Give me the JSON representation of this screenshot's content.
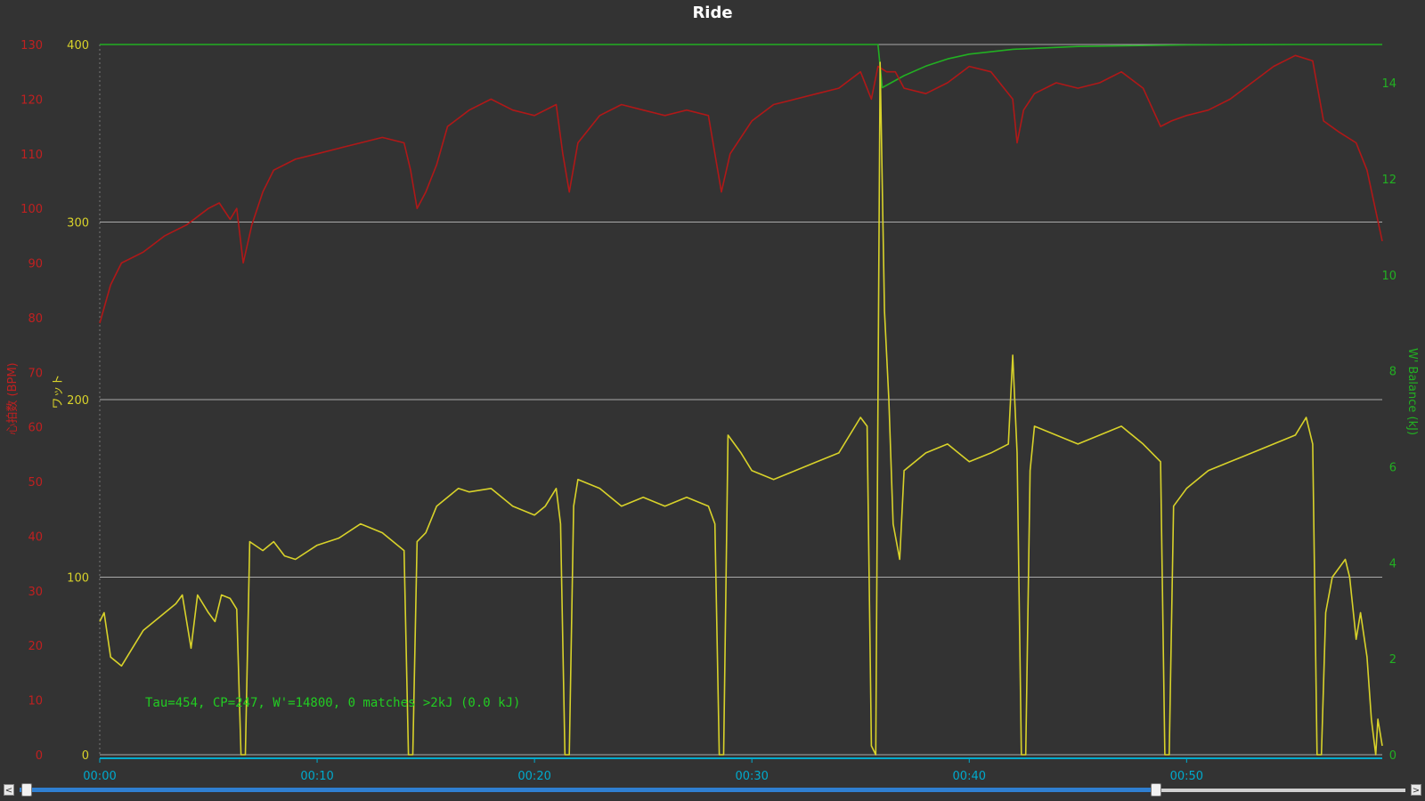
{
  "window": {
    "title": "Ride"
  },
  "annotation": "Tau=454, CP=247, W'=14800, 0 matches >2kJ (0.0 kJ)",
  "colors": {
    "background": "#333333",
    "power": "#d8d22a",
    "heart_rate": "#b01818",
    "w_balance": "#22b022",
    "grid": "#aaaaaa",
    "xaxis": "#00aacc"
  },
  "scrollbar": {
    "left_arrow": "<",
    "right_arrow": ">",
    "range_start_fraction": 0.0,
    "range_end_fraction": 0.82
  },
  "chart_data": {
    "type": "line",
    "title": "Ride",
    "x_unit": "time (hh:mm)",
    "xlim": [
      0,
      59
    ],
    "x_ticks": [
      "00:00",
      "00:10",
      "00:20",
      "00:30",
      "00:40",
      "00:50"
    ],
    "grid": true,
    "axes": {
      "left_heart_rate": {
        "label": "心拍数 (BPM)",
        "ylim": [
          0,
          130
        ],
        "ticks": [
          0,
          10,
          20,
          30,
          40,
          50,
          60,
          70,
          80,
          90,
          100,
          110,
          120,
          130
        ]
      },
      "left_power": {
        "label": "ワット",
        "ylim": [
          0,
          400
        ],
        "ticks": [
          0,
          100,
          200,
          300,
          400
        ]
      },
      "right_w_balance": {
        "label": "W' Balance (kJ)",
        "ylim": [
          0,
          14.8
        ],
        "ticks": [
          0,
          2,
          4,
          6,
          8,
          10,
          12,
          14
        ]
      }
    },
    "series": [
      {
        "axis": "left_power",
        "points": [
          [
            0,
            75
          ],
          [
            0.2,
            80
          ],
          [
            0.5,
            55
          ],
          [
            1,
            50
          ],
          [
            1.5,
            60
          ],
          [
            2,
            70
          ],
          [
            2.5,
            75
          ],
          [
            3,
            80
          ],
          [
            3.5,
            85
          ],
          [
            3.8,
            90
          ],
          [
            4,
            75
          ],
          [
            4.2,
            60
          ],
          [
            4.5,
            90
          ],
          [
            5,
            80
          ],
          [
            5.3,
            75
          ],
          [
            5.6,
            90
          ],
          [
            6,
            88
          ],
          [
            6.3,
            82
          ],
          [
            6.5,
            0
          ],
          [
            6.7,
            0
          ],
          [
            6.9,
            120
          ],
          [
            7.5,
            115
          ],
          [
            8,
            120
          ],
          [
            8.5,
            112
          ],
          [
            9,
            110
          ],
          [
            10,
            118
          ],
          [
            11,
            122
          ],
          [
            12,
            130
          ],
          [
            13,
            125
          ],
          [
            13.5,
            120
          ],
          [
            14,
            115
          ],
          [
            14.2,
            0
          ],
          [
            14.4,
            0
          ],
          [
            14.6,
            120
          ],
          [
            15,
            125
          ],
          [
            15.5,
            140
          ],
          [
            16,
            145
          ],
          [
            16.5,
            150
          ],
          [
            17,
            148
          ],
          [
            18,
            150
          ],
          [
            19,
            140
          ],
          [
            20,
            135
          ],
          [
            20.5,
            140
          ],
          [
            21,
            150
          ],
          [
            21.2,
            130
          ],
          [
            21.4,
            0
          ],
          [
            21.6,
            0
          ],
          [
            21.8,
            140
          ],
          [
            22,
            155
          ],
          [
            23,
            150
          ],
          [
            24,
            140
          ],
          [
            25,
            145
          ],
          [
            26,
            140
          ],
          [
            27,
            145
          ],
          [
            28,
            140
          ],
          [
            28.3,
            130
          ],
          [
            28.5,
            0
          ],
          [
            28.7,
            0
          ],
          [
            28.9,
            180
          ],
          [
            29.5,
            170
          ],
          [
            30,
            160
          ],
          [
            31,
            155
          ],
          [
            32,
            160
          ],
          [
            33,
            165
          ],
          [
            34,
            170
          ],
          [
            35,
            190
          ],
          [
            35.3,
            185
          ],
          [
            35.5,
            5
          ],
          [
            35.7,
            0
          ],
          [
            35.9,
            390
          ],
          [
            36.1,
            250
          ],
          [
            36.3,
            200
          ],
          [
            36.5,
            130
          ],
          [
            36.8,
            110
          ],
          [
            37,
            160
          ],
          [
            38,
            170
          ],
          [
            39,
            175
          ],
          [
            40,
            165
          ],
          [
            41,
            170
          ],
          [
            41.8,
            175
          ],
          [
            42,
            225
          ],
          [
            42.2,
            170
          ],
          [
            42.4,
            0
          ],
          [
            42.6,
            0
          ],
          [
            42.8,
            160
          ],
          [
            43,
            185
          ],
          [
            44,
            180
          ],
          [
            45,
            175
          ],
          [
            46,
            180
          ],
          [
            47,
            185
          ],
          [
            48,
            175
          ],
          [
            48.8,
            165
          ],
          [
            49,
            0
          ],
          [
            49.2,
            0
          ],
          [
            49.4,
            140
          ],
          [
            50,
            150
          ],
          [
            51,
            160
          ],
          [
            52,
            165
          ],
          [
            53,
            170
          ],
          [
            54,
            175
          ],
          [
            55,
            180
          ],
          [
            55.5,
            190
          ],
          [
            55.8,
            175
          ],
          [
            56,
            0
          ],
          [
            56.2,
            0
          ],
          [
            56.4,
            80
          ],
          [
            56.7,
            100
          ],
          [
            57,
            105
          ],
          [
            57.3,
            110
          ],
          [
            57.5,
            100
          ],
          [
            57.8,
            65
          ],
          [
            58,
            80
          ],
          [
            58.3,
            55
          ],
          [
            58.5,
            20
          ],
          [
            58.7,
            0
          ],
          [
            58.8,
            20
          ],
          [
            59,
            5
          ]
        ]
      },
      {
        "axis": "left_heart_rate",
        "points": [
          [
            0,
            79
          ],
          [
            0.5,
            86
          ],
          [
            1,
            90
          ],
          [
            2,
            92
          ],
          [
            3,
            95
          ],
          [
            4,
            97
          ],
          [
            5,
            100
          ],
          [
            5.5,
            101
          ],
          [
            6,
            98
          ],
          [
            6.3,
            100
          ],
          [
            6.6,
            90
          ],
          [
            7,
            97
          ],
          [
            7.5,
            103
          ],
          [
            8,
            107
          ],
          [
            9,
            109
          ],
          [
            10,
            110
          ],
          [
            11,
            111
          ],
          [
            12,
            112
          ],
          [
            13,
            113
          ],
          [
            14,
            112
          ],
          [
            14.3,
            107
          ],
          [
            14.6,
            100
          ],
          [
            15,
            103
          ],
          [
            15.5,
            108
          ],
          [
            16,
            115
          ],
          [
            17,
            118
          ],
          [
            18,
            120
          ],
          [
            19,
            118
          ],
          [
            20,
            117
          ],
          [
            21,
            119
          ],
          [
            21.3,
            110
          ],
          [
            21.6,
            103
          ],
          [
            22,
            112
          ],
          [
            23,
            117
          ],
          [
            24,
            119
          ],
          [
            25,
            118
          ],
          [
            26,
            117
          ],
          [
            27,
            118
          ],
          [
            28,
            117
          ],
          [
            28.3,
            110
          ],
          [
            28.6,
            103
          ],
          [
            29,
            110
          ],
          [
            30,
            116
          ],
          [
            31,
            119
          ],
          [
            32,
            120
          ],
          [
            33,
            121
          ],
          [
            34,
            122
          ],
          [
            35,
            125
          ],
          [
            35.5,
            120
          ],
          [
            35.8,
            126
          ],
          [
            36.2,
            125
          ],
          [
            36.6,
            125
          ],
          [
            37,
            122
          ],
          [
            38,
            121
          ],
          [
            39,
            123
          ],
          [
            40,
            126
          ],
          [
            41,
            125
          ],
          [
            42,
            120
          ],
          [
            42.2,
            112
          ],
          [
            42.5,
            118
          ],
          [
            43,
            121
          ],
          [
            44,
            123
          ],
          [
            45,
            122
          ],
          [
            46,
            123
          ],
          [
            47,
            125
          ],
          [
            48,
            122
          ],
          [
            48.8,
            115
          ],
          [
            49.3,
            116
          ],
          [
            50,
            117
          ],
          [
            51,
            118
          ],
          [
            52,
            120
          ],
          [
            53,
            123
          ],
          [
            54,
            126
          ],
          [
            55,
            128
          ],
          [
            55.8,
            127
          ],
          [
            56.3,
            116
          ],
          [
            57,
            114
          ],
          [
            57.8,
            112
          ],
          [
            58.3,
            107
          ],
          [
            59,
            94
          ]
        ]
      },
      {
        "axis": "right_w_balance",
        "points": [
          [
            0,
            14.8
          ],
          [
            35.6,
            14.8
          ],
          [
            35.8,
            14.8
          ],
          [
            36,
            13.9
          ],
          [
            37,
            14.15
          ],
          [
            38,
            14.35
          ],
          [
            39,
            14.5
          ],
          [
            40,
            14.6
          ],
          [
            42,
            14.7
          ],
          [
            45,
            14.76
          ],
          [
            50,
            14.79
          ],
          [
            55,
            14.8
          ],
          [
            59,
            14.8
          ]
        ]
      }
    ]
  }
}
